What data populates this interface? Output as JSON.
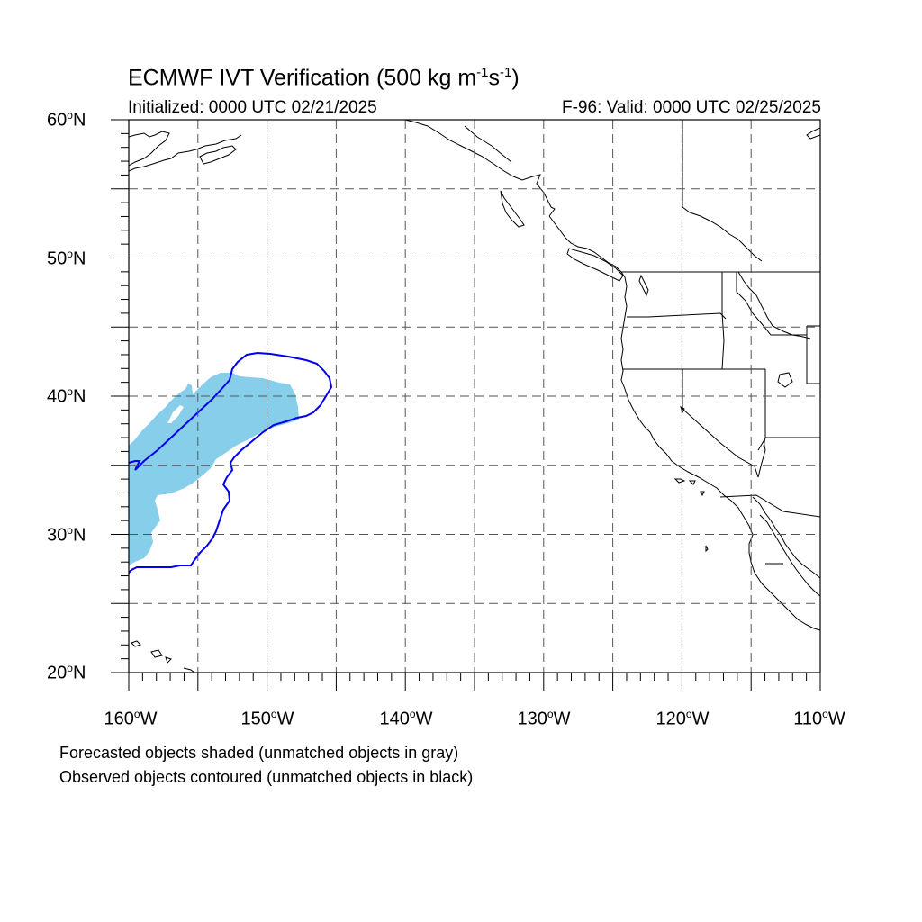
{
  "title": {
    "main": "ECMWF IVT Verification (500 kg m",
    "sup1": "-1",
    "mid": "s",
    "sup2": "-1",
    "end": ")"
  },
  "subtitle": {
    "initialized": "Initialized: 0000 UTC 02/21/2025",
    "valid": "F-96: Valid: 0000 UTC 02/25/2025"
  },
  "axes": {
    "lat_labels": [
      {
        "num": "60",
        "hemi": "N"
      },
      {
        "num": "50",
        "hemi": "N"
      },
      {
        "num": "40",
        "hemi": "N"
      },
      {
        "num": "30",
        "hemi": "N"
      },
      {
        "num": "20",
        "hemi": "N"
      }
    ],
    "lon_labels": [
      {
        "num": "160",
        "hemi": "W"
      },
      {
        "num": "150",
        "hemi": "W"
      },
      {
        "num": "140",
        "hemi": "W"
      },
      {
        "num": "130",
        "hemi": "W"
      },
      {
        "num": "120",
        "hemi": "W"
      },
      {
        "num": "110",
        "hemi": "W"
      }
    ],
    "degree_symbol": "o",
    "lat_range": [
      20,
      60
    ],
    "lon_range": [
      -160,
      -110
    ],
    "grid_spacing_deg": 5
  },
  "map_extent": {
    "lon": [
      -160,
      -110
    ],
    "lat": [
      20,
      60
    ]
  },
  "notes": {
    "line1": "Forecasted objects shaded (unmatched objects in gray)",
    "line2": "Observed objects contoured (unmatched objects in black)"
  },
  "colors": {
    "forecast_fill": "#87ceeb",
    "observed_contour": "#0000ee",
    "coastline": "#000000",
    "grid": "#555555"
  }
}
